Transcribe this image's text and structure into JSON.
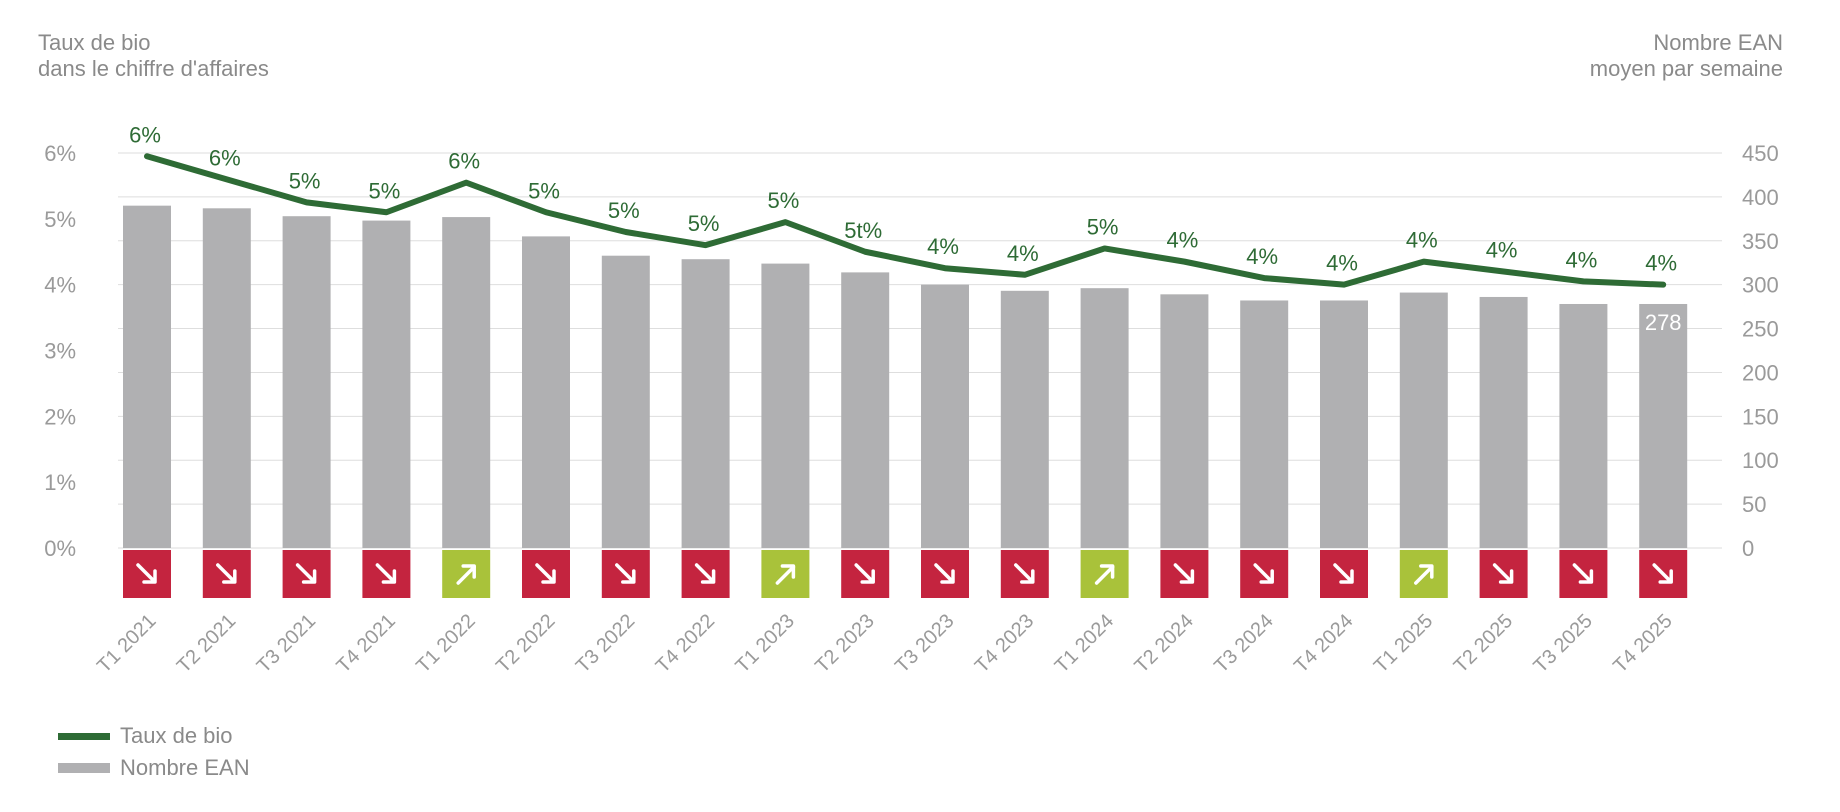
{
  "chart_data": {
    "type": "bar",
    "left_axis_title": [
      "Taux de bio",
      "dans le chiffre d'affaires"
    ],
    "right_axis_title": [
      "Nombre EAN",
      "moyen par semaine"
    ],
    "left_ticks": [
      "0%",
      "1%",
      "2%",
      "3%",
      "4%",
      "5%",
      "6%"
    ],
    "right_ticks": [
      "0",
      "50",
      "100",
      "150",
      "200",
      "250",
      "300",
      "350",
      "400",
      "450"
    ],
    "left_ylim": [
      0,
      6
    ],
    "right_ylim": [
      0,
      450
    ],
    "grid": true,
    "categories": [
      "T1 2021",
      "T2 2021",
      "T3 2021",
      "T4 2021",
      "T1 2022",
      "T2 2022",
      "T3 2022",
      "T4 2022",
      "T1 2023",
      "T2 2023",
      "T3 2023",
      "T4 2023",
      "T1 2024",
      "T2 2024",
      "T3 2024",
      "T4 2024",
      "T1 2025",
      "T2 2025",
      "T3 2025",
      "T4 2025"
    ],
    "series": [
      {
        "name": "Nombre EAN",
        "type": "bar",
        "axis": "right",
        "color": "#b0b0b2",
        "values": [
          390,
          387,
          378,
          373,
          377,
          355,
          333,
          329,
          324,
          314,
          300,
          293,
          296,
          289,
          282,
          282,
          291,
          286,
          278,
          278
        ]
      },
      {
        "name": "Taux de bio",
        "type": "line",
        "axis": "left",
        "color": "#2e6b35",
        "values": [
          5.95,
          5.6,
          5.25,
          5.1,
          5.55,
          5.1,
          4.8,
          4.6,
          4.95,
          4.5,
          4.25,
          4.15,
          4.55,
          4.35,
          4.1,
          4.0,
          4.35,
          4.2,
          4.05,
          4.0
        ],
        "labels": [
          "6%",
          "6%",
          "5%",
          "5%",
          "6%",
          "5%",
          "5%",
          "5%",
          "5%",
          "5t%",
          "4%",
          "4%",
          "5%",
          "4%",
          "4%",
          "4%",
          "4%",
          "4%",
          "4%",
          "4%"
        ]
      }
    ],
    "bar_value_labels": [
      {
        "index": 19,
        "text": "278"
      }
    ],
    "trend_indicators": [
      "down",
      "down",
      "down",
      "down",
      "up",
      "down",
      "down",
      "down",
      "up",
      "down",
      "down",
      "down",
      "up",
      "down",
      "down",
      "down",
      "up",
      "down",
      "down",
      "down"
    ],
    "trend_colors": {
      "down": "#c4243f",
      "up": "#a9c23a"
    },
    "legend": {
      "placement": "bottom-left",
      "items": [
        {
          "label": "Taux de bio",
          "kind": "line"
        },
        {
          "label": "Nombre EAN",
          "kind": "bar"
        }
      ]
    }
  }
}
